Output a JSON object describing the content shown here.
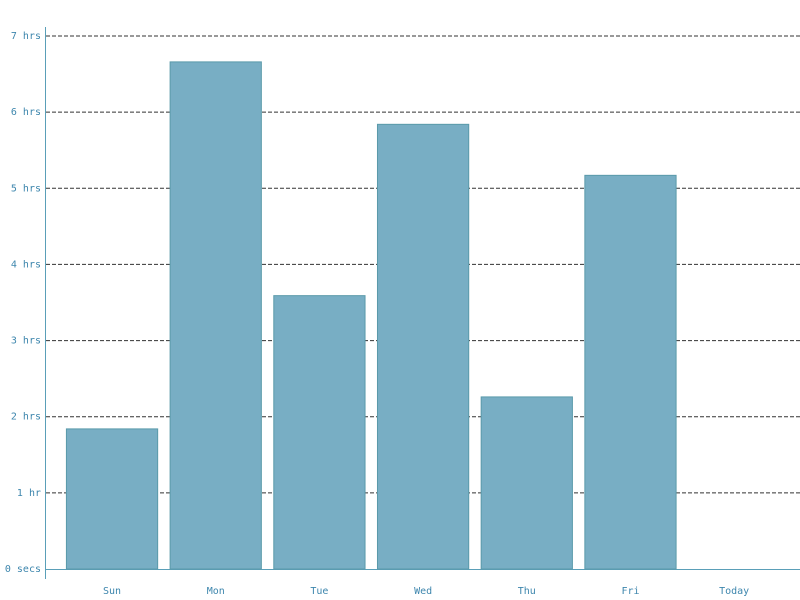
{
  "chart_data": {
    "type": "bar",
    "categories": [
      "Sun",
      "Mon",
      "Tue",
      "Wed",
      "Thu",
      "Fri",
      "Today"
    ],
    "values": [
      1.84,
      6.66,
      3.59,
      5.84,
      2.26,
      5.17,
      0
    ],
    "color": "#78aec4",
    "ylim": [
      0,
      7
    ],
    "yticks": [
      {
        "value": 0,
        "label": "0 secs"
      },
      {
        "value": 1,
        "label": "1 hr"
      },
      {
        "value": 2,
        "label": "2 hrs"
      },
      {
        "value": 3,
        "label": "3 hrs"
      },
      {
        "value": 4,
        "label": "4 hrs"
      },
      {
        "value": 5,
        "label": "5 hrs"
      },
      {
        "value": 6,
        "label": "6 hrs"
      },
      {
        "value": 7,
        "label": "7 hrs"
      }
    ],
    "grid": true
  }
}
